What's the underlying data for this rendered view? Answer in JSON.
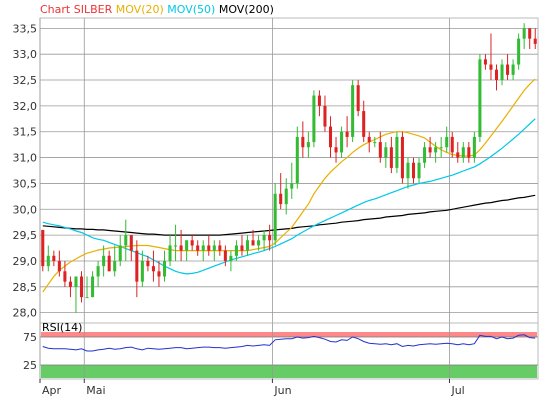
{
  "chart_data": [
    {
      "type": "candlestick",
      "title": "Chart SILBER",
      "legend": [
        {
          "label": "MOV(20)",
          "color": "#e8b000"
        },
        {
          "label": "MOV(50)",
          "color": "#00c8e6"
        },
        {
          "label": "MOV(200)",
          "color": "#000000"
        }
      ],
      "title_color": "#ee3333",
      "ylim": [
        27.8,
        33.7
      ],
      "y_ticks": [
        "28,0",
        "28,5",
        "29,0",
        "29,5",
        "30,0",
        "30,5",
        "31,0",
        "31,5",
        "32,0",
        "32,5",
        "33,0",
        "33,5"
      ],
      "x_ticks": [
        {
          "label": "Apr",
          "index": 0
        },
        {
          "label": "Mai",
          "index": 8
        },
        {
          "label": "Jun",
          "index": 42
        },
        {
          "label": "Jul",
          "index": 74
        }
      ],
      "up_color": "#33bb33",
      "down_color": "#dd2222",
      "candles": [
        [
          29.6,
          29.6,
          28.8,
          28.9
        ],
        [
          28.9,
          29.3,
          28.8,
          29.1
        ],
        [
          29.1,
          29.2,
          28.9,
          29.0
        ],
        [
          29.0,
          29.2,
          28.7,
          28.8
        ],
        [
          28.8,
          29.0,
          28.5,
          28.6
        ],
        [
          28.6,
          28.7,
          28.3,
          28.5
        ],
        [
          28.5,
          28.7,
          28.0,
          28.7
        ],
        [
          28.7,
          28.8,
          28.2,
          28.3
        ],
        [
          28.3,
          28.7,
          28.3,
          28.3
        ],
        [
          28.3,
          28.8,
          28.3,
          28.7
        ],
        [
          28.7,
          29.0,
          28.5,
          28.9
        ],
        [
          28.9,
          29.3,
          28.7,
          29.1
        ],
        [
          29.1,
          29.2,
          28.8,
          28.8
        ],
        [
          28.8,
          29.3,
          28.7,
          29.0
        ],
        [
          29.0,
          29.5,
          28.9,
          29.3
        ],
        [
          29.3,
          29.8,
          29.0,
          29.5
        ],
        [
          29.5,
          29.5,
          29.0,
          29.2
        ],
        [
          29.2,
          29.4,
          28.3,
          28.6
        ],
        [
          28.6,
          29.2,
          28.5,
          29.0
        ],
        [
          29.0,
          29.1,
          28.8,
          28.9
        ],
        [
          28.9,
          29.2,
          28.6,
          28.8
        ],
        [
          28.8,
          29.0,
          28.5,
          28.7
        ],
        [
          28.7,
          29.2,
          28.6,
          29.0
        ],
        [
          29.0,
          29.5,
          28.9,
          29.3
        ],
        [
          29.3,
          29.7,
          29.0,
          29.3
        ],
        [
          29.3,
          29.6,
          29.0,
          29.2
        ],
        [
          29.2,
          29.4,
          29.0,
          29.4
        ],
        [
          29.4,
          29.5,
          29.2,
          29.3
        ],
        [
          29.3,
          29.4,
          29.1,
          29.2
        ],
        [
          29.2,
          29.4,
          29.0,
          29.3
        ],
        [
          29.3,
          29.5,
          29.1,
          29.2
        ],
        [
          29.2,
          29.4,
          29.0,
          29.3
        ],
        [
          29.3,
          29.4,
          29.1,
          29.2
        ],
        [
          29.2,
          29.3,
          28.9,
          29.0
        ],
        [
          29.0,
          29.2,
          28.8,
          29.1
        ],
        [
          29.1,
          29.4,
          29.0,
          29.3
        ],
        [
          29.3,
          29.5,
          29.1,
          29.2
        ],
        [
          29.2,
          29.5,
          29.1,
          29.4
        ],
        [
          29.4,
          29.6,
          29.3,
          29.3
        ],
        [
          29.3,
          29.5,
          29.2,
          29.4
        ],
        [
          29.4,
          29.6,
          29.2,
          29.5
        ],
        [
          29.5,
          29.7,
          29.2,
          29.4
        ],
        [
          29.4,
          30.5,
          29.3,
          30.3
        ],
        [
          30.3,
          30.7,
          30.0,
          30.1
        ],
        [
          30.1,
          30.6,
          29.9,
          30.4
        ],
        [
          30.4,
          30.9,
          30.2,
          30.5
        ],
        [
          30.5,
          31.6,
          30.4,
          31.4
        ],
        [
          31.4,
          31.7,
          31.0,
          31.2
        ],
        [
          31.2,
          31.5,
          31.0,
          31.3
        ],
        [
          31.3,
          32.3,
          31.2,
          32.2
        ],
        [
          32.2,
          32.3,
          31.8,
          32.0
        ],
        [
          32.0,
          32.2,
          31.5,
          31.6
        ],
        [
          31.6,
          31.8,
          31.0,
          31.2
        ],
        [
          31.2,
          31.4,
          30.9,
          31.1
        ],
        [
          31.1,
          31.6,
          31.0,
          31.5
        ],
        [
          31.5,
          31.8,
          31.2,
          31.4
        ],
        [
          31.4,
          32.5,
          31.3,
          32.4
        ],
        [
          32.4,
          32.5,
          31.8,
          31.9
        ],
        [
          31.9,
          32.1,
          31.3,
          31.4
        ],
        [
          31.4,
          31.5,
          31.1,
          31.3
        ],
        [
          31.3,
          31.4,
          31.2,
          31.3
        ],
        [
          31.3,
          31.5,
          30.9,
          31.0
        ],
        [
          31.0,
          31.3,
          30.8,
          31.2
        ],
        [
          31.2,
          31.4,
          30.7,
          30.8
        ],
        [
          30.8,
          31.5,
          30.7,
          31.4
        ],
        [
          31.4,
          31.5,
          30.5,
          30.6
        ],
        [
          30.6,
          31.0,
          30.4,
          30.9
        ],
        [
          30.9,
          31.0,
          30.5,
          30.6
        ],
        [
          30.6,
          31.0,
          30.5,
          30.9
        ],
        [
          30.9,
          31.3,
          30.8,
          31.2
        ],
        [
          31.2,
          31.4,
          31.0,
          31.1
        ],
        [
          31.1,
          31.3,
          30.9,
          31.2
        ],
        [
          31.2,
          31.4,
          31.0,
          31.2
        ],
        [
          31.2,
          31.6,
          31.1,
          31.4
        ],
        [
          31.4,
          31.5,
          31.0,
          31.1
        ],
        [
          31.1,
          31.3,
          30.9,
          31.0
        ],
        [
          31.0,
          31.3,
          30.9,
          31.2
        ],
        [
          31.2,
          31.3,
          30.9,
          31.0
        ],
        [
          31.0,
          31.5,
          30.9,
          31.4
        ],
        [
          31.4,
          33.0,
          31.3,
          32.9
        ],
        [
          32.9,
          33.0,
          32.7,
          32.8
        ],
        [
          32.8,
          33.4,
          32.5,
          32.7
        ],
        [
          32.7,
          32.8,
          32.3,
          32.5
        ],
        [
          32.5,
          32.9,
          32.4,
          32.8
        ],
        [
          32.8,
          33.0,
          32.5,
          32.6
        ],
        [
          32.6,
          32.9,
          32.5,
          32.8
        ],
        [
          32.8,
          33.4,
          32.7,
          33.3
        ],
        [
          33.3,
          33.6,
          33.1,
          33.5
        ],
        [
          33.5,
          33.5,
          33.1,
          33.3
        ],
        [
          33.3,
          33.5,
          33.1,
          33.2
        ]
      ],
      "mov20": [
        28.4,
        28.55,
        28.7,
        28.82,
        28.9,
        28.98,
        29.04,
        29.1,
        29.15,
        29.18,
        29.21,
        29.23,
        29.25,
        29.26,
        29.27,
        29.28,
        29.29,
        29.3,
        29.3,
        29.3,
        29.28,
        29.26,
        29.24,
        29.22,
        29.2,
        29.2,
        29.2,
        29.2,
        29.2,
        29.2,
        29.2,
        29.2,
        29.2,
        29.2,
        29.2,
        29.2,
        29.2,
        29.2,
        29.22,
        29.24,
        29.26,
        29.28,
        29.35,
        29.45,
        29.55,
        29.65,
        29.8,
        29.95,
        30.1,
        30.3,
        30.45,
        30.6,
        30.72,
        30.82,
        30.92,
        31.0,
        31.1,
        31.18,
        31.25,
        31.3,
        31.35,
        31.4,
        31.45,
        31.48,
        31.5,
        31.5,
        31.48,
        31.45,
        31.42,
        31.38,
        31.3,
        31.22,
        31.15,
        31.1,
        31.06,
        31.04,
        31.03,
        31.03,
        31.05,
        31.15,
        31.28,
        31.42,
        31.56,
        31.7,
        31.85,
        32.0,
        32.15,
        32.3,
        32.42,
        32.52
      ],
      "mov50": [
        29.75,
        29.72,
        29.7,
        29.68,
        29.65,
        29.62,
        29.58,
        29.55,
        29.5,
        29.45,
        29.42,
        29.4,
        29.36,
        29.32,
        29.28,
        29.24,
        29.2,
        29.16,
        29.12,
        29.08,
        29.02,
        28.96,
        28.9,
        28.85,
        28.8,
        28.77,
        28.75,
        28.76,
        28.78,
        28.82,
        28.86,
        28.9,
        28.94,
        28.98,
        29.02,
        29.05,
        29.08,
        29.11,
        29.14,
        29.17,
        29.2,
        29.24,
        29.28,
        29.33,
        29.38,
        29.43,
        29.5,
        29.56,
        29.62,
        29.68,
        29.73,
        29.78,
        29.83,
        29.88,
        29.93,
        29.98,
        30.03,
        30.08,
        30.13,
        30.17,
        30.2,
        30.24,
        30.28,
        30.32,
        30.36,
        30.4,
        30.44,
        30.47,
        30.5,
        30.52,
        30.54,
        30.57,
        30.6,
        30.63,
        30.66,
        30.7,
        30.74,
        30.78,
        30.82,
        30.88,
        30.95,
        31.02,
        31.1,
        31.18,
        31.27,
        31.36,
        31.45,
        31.55,
        31.65,
        31.75
      ],
      "mov200": [
        29.68,
        29.67,
        29.66,
        29.65,
        29.64,
        29.63,
        29.62,
        29.62,
        29.61,
        29.61,
        29.6,
        29.6,
        29.59,
        29.58,
        29.57,
        29.56,
        29.55,
        29.54,
        29.53,
        29.52,
        29.52,
        29.51,
        29.5,
        29.5,
        29.5,
        29.5,
        29.5,
        29.5,
        29.5,
        29.5,
        29.5,
        29.5,
        29.5,
        29.51,
        29.52,
        29.53,
        29.54,
        29.55,
        29.56,
        29.57,
        29.58,
        29.59,
        29.6,
        29.61,
        29.62,
        29.63,
        29.65,
        29.66,
        29.67,
        29.68,
        29.7,
        29.71,
        29.72,
        29.73,
        29.75,
        29.76,
        29.77,
        29.78,
        29.8,
        29.81,
        29.82,
        29.83,
        29.85,
        29.86,
        29.87,
        29.88,
        29.9,
        29.91,
        29.92,
        29.93,
        29.95,
        29.96,
        29.97,
        29.98,
        30.0,
        30.02,
        30.04,
        30.06,
        30.08,
        30.1,
        30.12,
        30.13,
        30.15,
        30.17,
        30.18,
        30.2,
        30.22,
        30.23,
        30.25,
        30.27
      ]
    },
    {
      "type": "line",
      "title": "RSI(14)",
      "ylim": [
        0,
        100
      ],
      "y_ticks": [
        "25",
        "75"
      ],
      "overbought_color": "#ff8888",
      "oversold_color": "#66cc66",
      "line_color": "#2233cc",
      "values": [
        58,
        55,
        54,
        54,
        54,
        53,
        52,
        54,
        50,
        50,
        52,
        53,
        55,
        53,
        54,
        56,
        57,
        54,
        52,
        55,
        54,
        53,
        54,
        55,
        56,
        56,
        54,
        55,
        56,
        57,
        57,
        56,
        56,
        55,
        56,
        57,
        58,
        60,
        59,
        60,
        61,
        60,
        70,
        71,
        72,
        72,
        75,
        73,
        74,
        76,
        74,
        71,
        67,
        66,
        70,
        69,
        75,
        72,
        67,
        64,
        63,
        62,
        63,
        61,
        63,
        58,
        60,
        59,
        61,
        62,
        63,
        62,
        63,
        64,
        63,
        61,
        63,
        61,
        63,
        78,
        76,
        76,
        72,
        75,
        72,
        73,
        78,
        79,
        74,
        73
      ]
    }
  ]
}
